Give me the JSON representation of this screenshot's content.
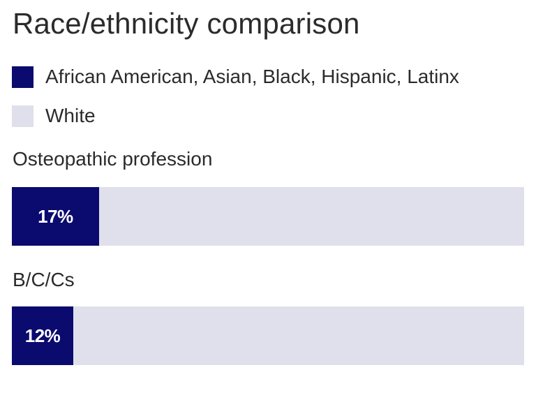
{
  "chart_data": {
    "type": "bar",
    "orientation": "horizontal",
    "stacked": true,
    "title": "Race/ethnicity comparison",
    "categories": [
      "Osteopathic profession",
      "B/C/Cs"
    ],
    "series": [
      {
        "name": "African American, Asian, Black, Hispanic, Latinx",
        "values": [
          17,
          12
        ],
        "color": "#0b0a6e"
      },
      {
        "name": "White",
        "values": [
          83,
          88
        ],
        "color": "#e0e0ec"
      }
    ],
    "data_labels": [
      "17%",
      "12%"
    ],
    "xlim": [
      0,
      100
    ],
    "legend_position": "top-left",
    "grid": false,
    "axes_visible": false
  }
}
